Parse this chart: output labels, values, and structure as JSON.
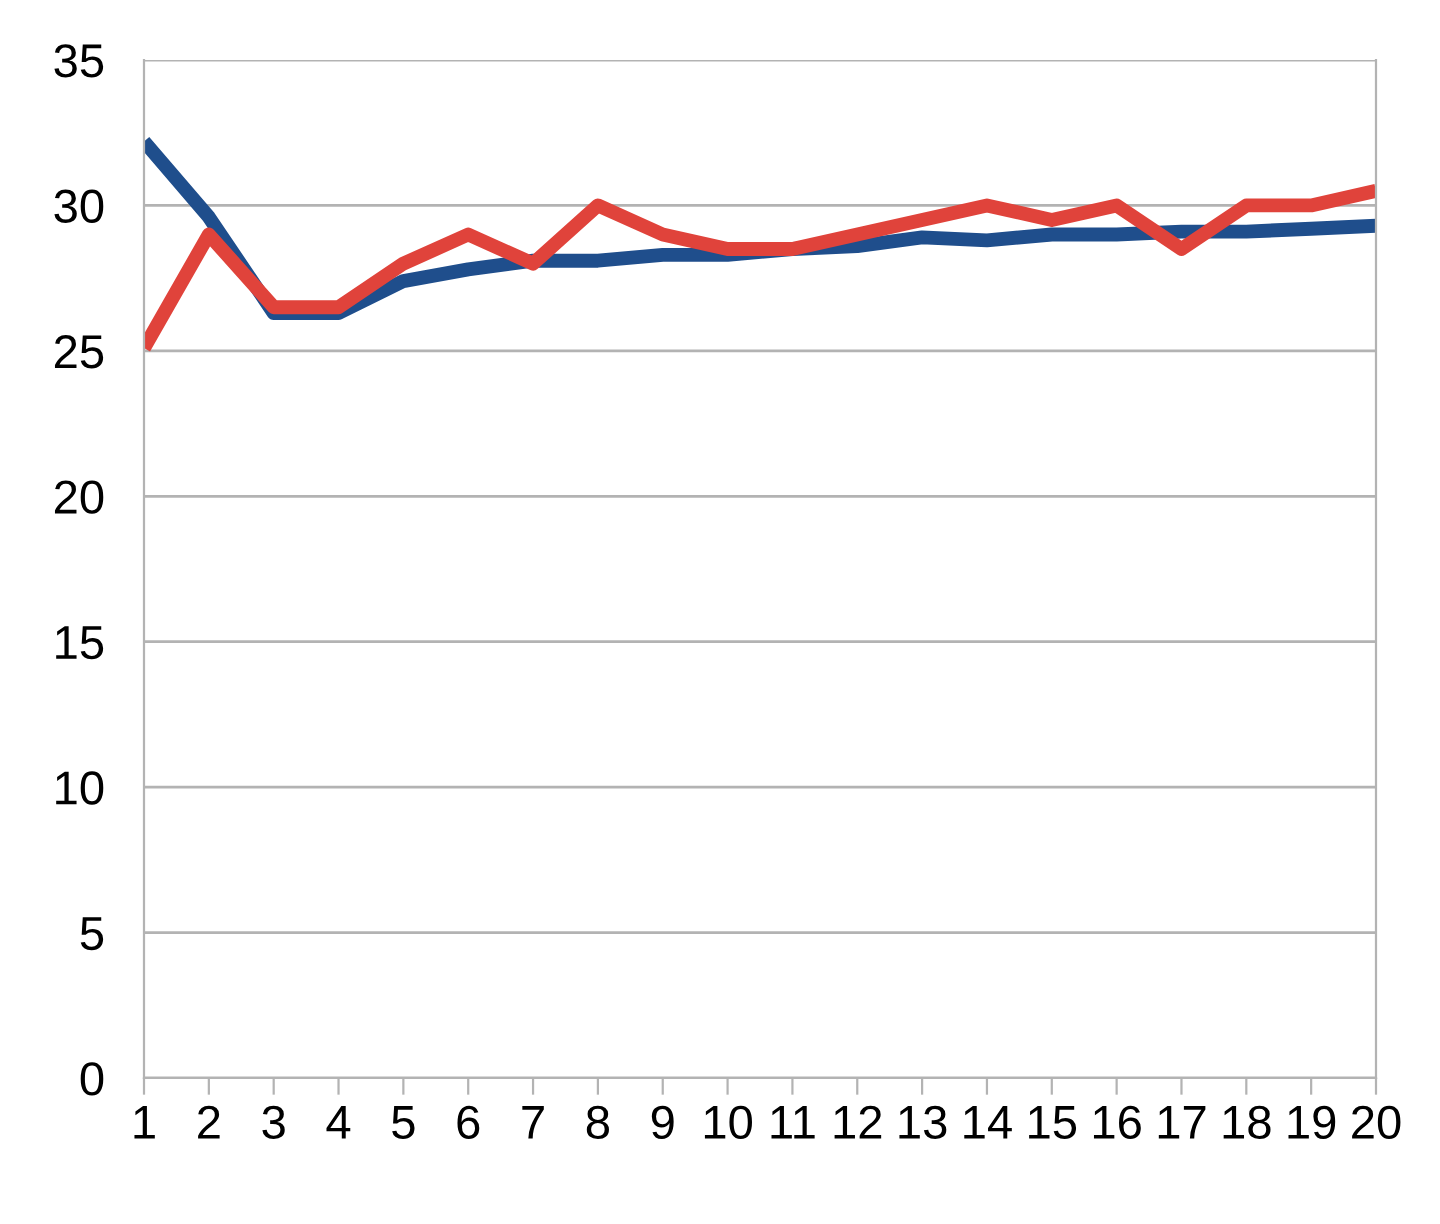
{
  "chart_data": {
    "type": "line",
    "categories": [
      "1",
      "2",
      "3",
      "4",
      "5",
      "6",
      "7",
      "8",
      "9",
      "10",
      "11",
      "12",
      "13",
      "14",
      "15",
      "16",
      "17",
      "18",
      "19",
      "20"
    ],
    "series": [
      {
        "color": "#1f4e8c",
        "values": [
          32.2,
          29.6,
          26.3,
          26.3,
          27.4,
          27.8,
          28.1,
          28.1,
          28.3,
          28.3,
          28.5,
          28.6,
          28.9,
          28.8,
          29.0,
          29.0,
          29.1,
          29.1,
          29.2,
          29.3
        ]
      },
      {
        "color": "#e0433b",
        "values": [
          25.1,
          29.0,
          26.5,
          26.5,
          28.0,
          29.0,
          28.0,
          30.0,
          29.0,
          28.5,
          28.5,
          29.0,
          29.5,
          30.0,
          29.5,
          30.0,
          28.5,
          30.0,
          30.0,
          30.5
        ]
      }
    ],
    "ylim": [
      0,
      35
    ],
    "yticks": [
      0,
      5,
      10,
      15,
      20,
      25,
      30,
      35
    ],
    "grid": "y",
    "marker": "none",
    "line_style": "solid",
    "legend": false
  }
}
